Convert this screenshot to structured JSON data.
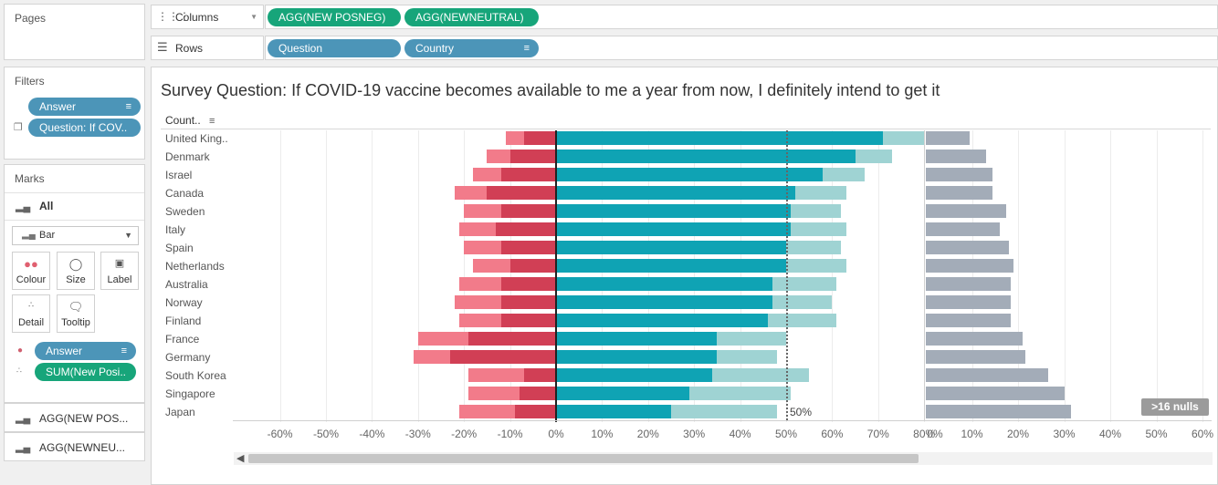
{
  "left_panel": {
    "pages_title": "Pages",
    "filters_title": "Filters",
    "filters": [
      {
        "label": "Answer",
        "icon": "sort-icon"
      },
      {
        "label": "Question: If COV..",
        "icon": "none"
      }
    ],
    "marks_title": "Marks",
    "marks_all": "All",
    "mark_type": "Bar",
    "mark_buttons": [
      "Colour",
      "Size",
      "Label",
      "Detail",
      "Tooltip"
    ],
    "mark_pills": [
      {
        "label": "Answer",
        "kind": "colour"
      },
      {
        "label": "SUM(New Posi..",
        "kind": "detail"
      }
    ],
    "measure_tabs": [
      "AGG(NEW POS...",
      "AGG(NEWNEU..."
    ]
  },
  "shelves": {
    "columns_label": "Columns",
    "columns": [
      "AGG(NEW POSNEG)",
      "AGG(NEWNEUTRAL)"
    ],
    "rows_label": "Rows",
    "rows": [
      "Question",
      "Country"
    ]
  },
  "view": {
    "title": "Survey Question: If COVID-19 vaccine becomes available to me a year from now, I definitely intend to get it",
    "row_header": "Count..",
    "nulls_badge": ">16 nulls",
    "ref_line_label": "50%",
    "colors": {
      "neg_strong": "#d13f55",
      "neg_light": "#f27b8a",
      "pos_strong": "#0fa3b4",
      "pos_light": "#9fd3d3",
      "neutral": "#a3acb8"
    }
  },
  "chart_data": {
    "type": "bar",
    "categories": [
      "United King..",
      "Denmark",
      "Israel",
      "Canada",
      "Sweden",
      "Italy",
      "Spain",
      "Netherlands",
      "Australia",
      "Norway",
      "Finland",
      "France",
      "Germany",
      "South Korea",
      "Singapore",
      "Japan"
    ],
    "panel1": {
      "ticks": [
        "-60%",
        "-50%",
        "-40%",
        "-30%",
        "-20%",
        "-10%",
        "0%",
        "10%",
        "20%",
        "30%",
        "40%",
        "50%",
        "60%",
        "70%",
        "80%"
      ],
      "xlim": [
        -70,
        80
      ],
      "series": [
        {
          "values": [
            -7,
            -10,
            -12,
            -15,
            -12,
            -13,
            -12,
            -10,
            -12,
            -12,
            -12,
            -19,
            -23,
            -7,
            -8,
            -9
          ]
        },
        {
          "values": [
            -11,
            -15,
            -18,
            -22,
            -20,
            -21,
            -20,
            -18,
            -21,
            -22,
            -21,
            -30,
            -31,
            -19,
            -19,
            -21
          ]
        },
        {
          "values": [
            71,
            65,
            58,
            52,
            51,
            51,
            50,
            50,
            47,
            47,
            46,
            35,
            35,
            34,
            29,
            25
          ]
        },
        {
          "values": [
            80,
            73,
            67,
            63,
            62,
            63,
            62,
            63,
            61,
            60,
            61,
            50,
            48,
            55,
            51,
            48
          ]
        }
      ],
      "ref_line": 50
    },
    "panel2": {
      "ticks": [
        "0%",
        "10%",
        "20%",
        "30%",
        "40%",
        "50%",
        "60%"
      ],
      "xlim": [
        0,
        60
      ],
      "values": [
        9.5,
        13,
        14.5,
        14.5,
        17.5,
        16,
        18,
        19,
        18.5,
        18.5,
        18.5,
        21,
        21.5,
        26.5,
        30,
        31.5
      ]
    }
  }
}
